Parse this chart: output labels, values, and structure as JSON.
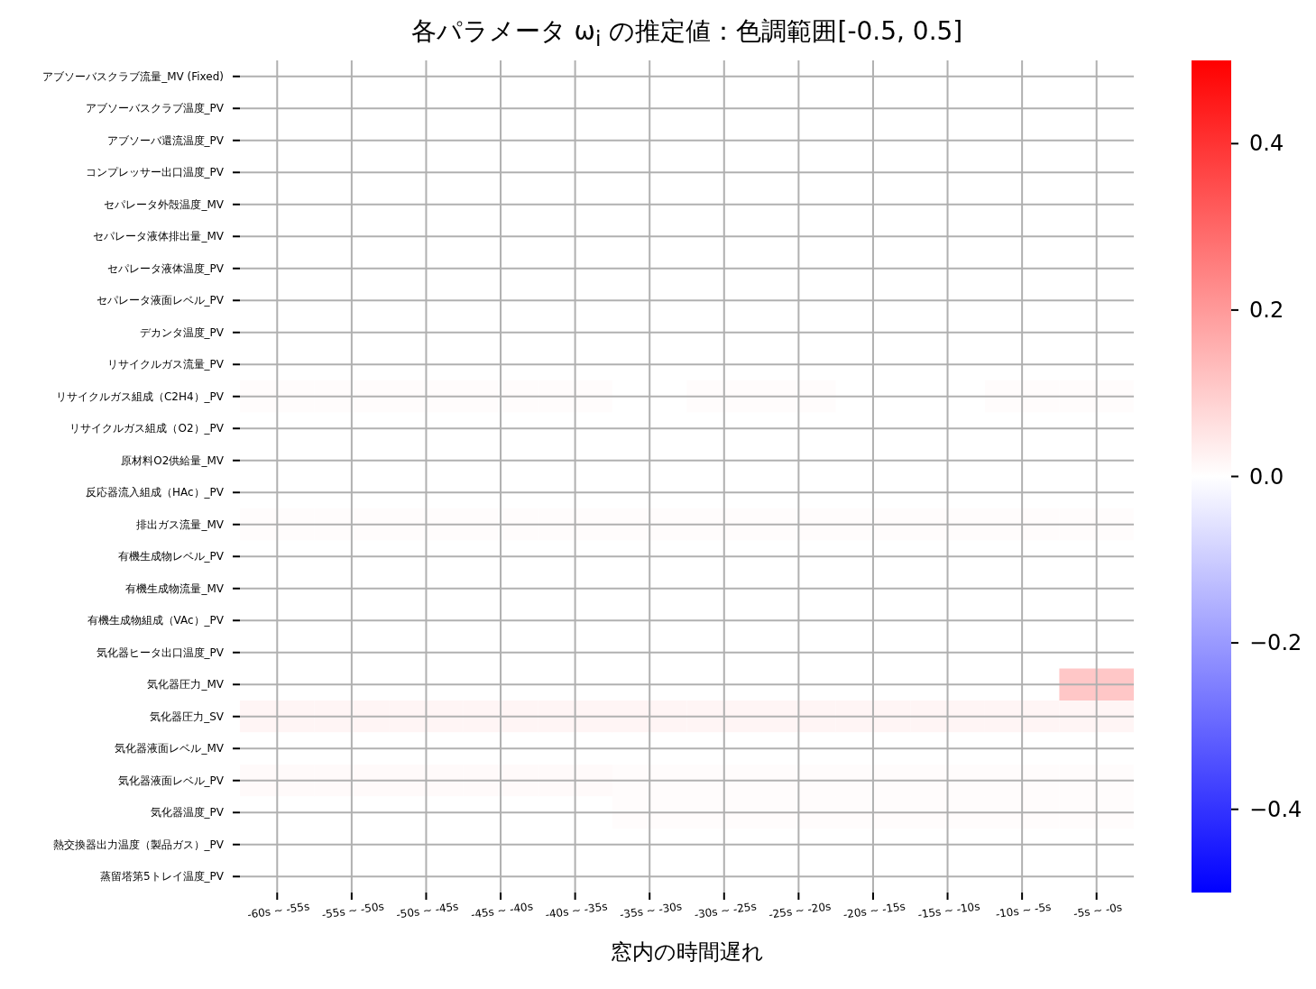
{
  "chart_data": {
    "type": "heatmap",
    "title": "各パラメータ ω$_{i}$ の推定値：色調範囲[-0.5, 0.5]",
    "xlabel": "窓内の時間遅れ",
    "categories": [
      "-60s ~ -55s",
      "-55s ~ -50s",
      "-50s ~ -45s",
      "-45s ~ -40s",
      "-40s ~ -35s",
      "-35s ~ -30s",
      "-30s ~ -25s",
      "-25s ~ -20s",
      "-20s ~ -15s",
      "-15s ~ -10s",
      "-10s ~ -5s",
      "-5s ~ -0s"
    ],
    "y_categories": [
      "アブソーバスクラブ流量_MV (Fixed)",
      "アブソーバスクラブ温度_PV",
      "アブソーバ還流温度_PV",
      "コンプレッサー出口温度_PV",
      "セパレータ外殻温度_MV",
      "セパレータ液体排出量_MV",
      "セパレータ液体温度_PV",
      "セパレータ液面レベル_PV",
      "デカンタ温度_PV",
      "リサイクルガス流量_PV",
      "リサイクルガス組成（C2H4）_PV",
      "リサイクルガス組成（O2）_PV",
      "原材料O2供給量_MV",
      "反応器流入組成（HAc）_PV",
      "排出ガス流量_MV",
      "有機生成物レベル_PV",
      "有機生成物流量_MV",
      "有機生成物組成（VAc）_PV",
      "気化器ヒータ出口温度_PV",
      "気化器圧力_MV",
      "気化器圧力_SV",
      "気化器液面レベル_MV",
      "気化器液面レベル_PV",
      "気化器温度_PV",
      "熱交換器出力温度（製品ガス）_PV",
      "蒸留塔第5トレイ温度_PV"
    ],
    "cells": [
      [
        0,
        0,
        0,
        0,
        0,
        0,
        0,
        0,
        0,
        0,
        0,
        0
      ],
      [
        0,
        0,
        0,
        0,
        0,
        0,
        0,
        0,
        0,
        0,
        0,
        0
      ],
      [
        0,
        0,
        0,
        0,
        0,
        0,
        0,
        0,
        0,
        0,
        0,
        0
      ],
      [
        0,
        0,
        0,
        0,
        0,
        0,
        0,
        0,
        0,
        0,
        0,
        0
      ],
      [
        0,
        0,
        0,
        0,
        0,
        0,
        0,
        0,
        0,
        0,
        0,
        0
      ],
      [
        0,
        0,
        0,
        0,
        0,
        0,
        0,
        0,
        0,
        0,
        0,
        0
      ],
      [
        0,
        0,
        0,
        0,
        0,
        0,
        0,
        0,
        0,
        0,
        0,
        0
      ],
      [
        0,
        0,
        0,
        0,
        0,
        0,
        0,
        0,
        0,
        0,
        0,
        0
      ],
      [
        0,
        0,
        0,
        0,
        0,
        0,
        0,
        0,
        0,
        0,
        0,
        0
      ],
      [
        0,
        0,
        0,
        0,
        0,
        0,
        0,
        0,
        0,
        0,
        0,
        0
      ],
      [
        0.005,
        0.005,
        0.005,
        0.005,
        0.005,
        0,
        0.005,
        0.005,
        0,
        0,
        0.005,
        0.005
      ],
      [
        0,
        0,
        0,
        0,
        0,
        0,
        0,
        0,
        0,
        0,
        0,
        0
      ],
      [
        0,
        0,
        0,
        0,
        0,
        0,
        0,
        0,
        0,
        0,
        0,
        0
      ],
      [
        0,
        0,
        0,
        0,
        0,
        0,
        0,
        0,
        0,
        0,
        0,
        0
      ],
      [
        0.005,
        0.005,
        0.005,
        0.005,
        0.005,
        0.005,
        0.005,
        0.005,
        0.005,
        0.005,
        0.005,
        0.005
      ],
      [
        0,
        0,
        0,
        0,
        0,
        0,
        0,
        0,
        0,
        0,
        0,
        0
      ],
      [
        0,
        0,
        0,
        0,
        0,
        0,
        0,
        0,
        0,
        0,
        0,
        0
      ],
      [
        0,
        0,
        0,
        0,
        0,
        0,
        0,
        0,
        0,
        0,
        0,
        0
      ],
      [
        0,
        0,
        0,
        0,
        0,
        0,
        0,
        0,
        0,
        0,
        0,
        0
      ],
      [
        0,
        0,
        0,
        0,
        0,
        0,
        0,
        0,
        0,
        0,
        0,
        0.11
      ],
      [
        0.02,
        0.02,
        0.02,
        0.02,
        0.02,
        0.02,
        0.02,
        0.02,
        0.02,
        0.02,
        0.02,
        0.02
      ],
      [
        0,
        0,
        0,
        0,
        0,
        0,
        0,
        0,
        0,
        0,
        0,
        0
      ],
      [
        0.01,
        0.01,
        0.01,
        0.01,
        0.01,
        0.005,
        0.005,
        0.005,
        0.005,
        0.005,
        0.005,
        0.005
      ],
      [
        0,
        0,
        0,
        0,
        0,
        0.005,
        0.005,
        0.005,
        0.005,
        0.005,
        0.005,
        0.005
      ],
      [
        0,
        0,
        0,
        0,
        0,
        0,
        0,
        0,
        0,
        0,
        0,
        0
      ],
      [
        0,
        0,
        0,
        0,
        0,
        0,
        0,
        0,
        0,
        0,
        0,
        0
      ]
    ],
    "clim": [
      -0.5,
      0.5
    ],
    "cticks": [
      {
        "value": -0.4,
        "label": "−0.4"
      },
      {
        "value": -0.2,
        "label": "−0.2"
      },
      {
        "value": 0,
        "label": "0.0"
      },
      0.2,
      0.4
    ],
    "grid": true
  }
}
